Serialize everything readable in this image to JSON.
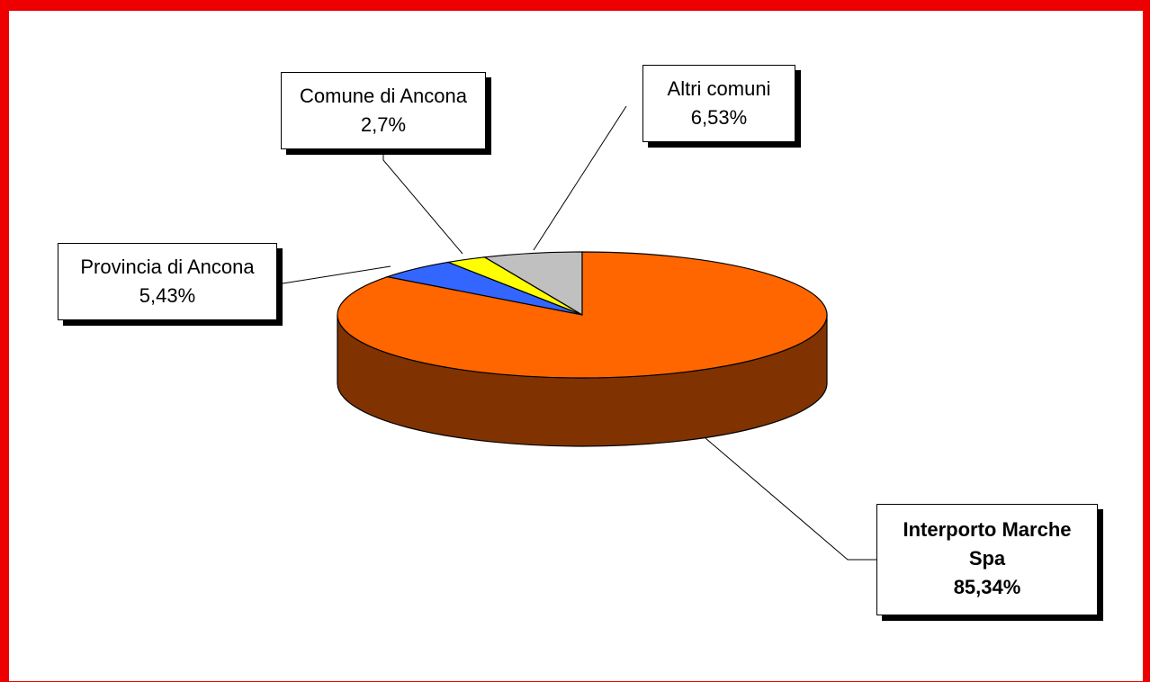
{
  "chart_data": {
    "type": "pie",
    "style": "3d",
    "slices": [
      {
        "label": "Interporto Marche Spa",
        "value": 85.34,
        "value_label": "85,34%",
        "color": "#ff6600",
        "side_color": "#803300"
      },
      {
        "label": "Provincia di Ancona",
        "value": 5.43,
        "value_label": "5,43%",
        "color": "#3366ff",
        "side_color": "#1a3380"
      },
      {
        "label": "Comune di Ancona",
        "value": 2.7,
        "value_label": "2,7%",
        "color": "#ffff00",
        "side_color": "#808000"
      },
      {
        "label": "Altri comuni",
        "value": 6.53,
        "value_label": "6,53%",
        "color": "#c0c0c0",
        "side_color": "#606060"
      }
    ],
    "legend": "none",
    "border_color": "#ee0000"
  }
}
